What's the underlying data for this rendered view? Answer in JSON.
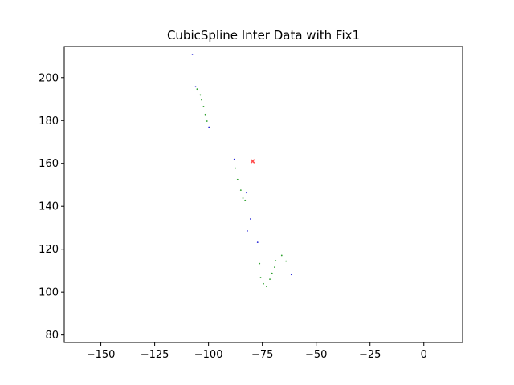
{
  "chart_data": {
    "type": "scatter",
    "title": "CubicSpline Inter Data with Fix1",
    "xlabel": "",
    "ylabel": "",
    "xlim": [
      -167,
      18
    ],
    "ylim": [
      76.5,
      214.5
    ],
    "grid": false,
    "xticks": [
      {
        "value": -150,
        "label": "−150"
      },
      {
        "value": -125,
        "label": "−125"
      },
      {
        "value": -100,
        "label": "−100"
      },
      {
        "value": -75,
        "label": "−75"
      },
      {
        "value": -50,
        "label": "−50"
      },
      {
        "value": -25,
        "label": "−25"
      },
      {
        "value": 0,
        "label": "0"
      }
    ],
    "yticks": [
      {
        "value": 80,
        "label": "80"
      },
      {
        "value": 100,
        "label": "100"
      },
      {
        "value": 120,
        "label": "120"
      },
      {
        "value": 140,
        "label": "140"
      },
      {
        "value": 160,
        "label": "160"
      },
      {
        "value": 180,
        "label": "180"
      },
      {
        "value": 200,
        "label": "200"
      }
    ],
    "series": [
      {
        "marker": "dot",
        "color": "#1f1fd6",
        "points": [
          {
            "x": -107.5,
            "y": 210.7
          },
          {
            "x": -106.0,
            "y": 195.7
          },
          {
            "x": -99.8,
            "y": 176.9
          },
          {
            "x": -88.0,
            "y": 161.9
          },
          {
            "x": -82.3,
            "y": 146.3
          },
          {
            "x": -80.5,
            "y": 134.1
          },
          {
            "x": -82.0,
            "y": 128.5
          },
          {
            "x": -77.2,
            "y": 123.2
          },
          {
            "x": -61.5,
            "y": 108.2
          }
        ]
      },
      {
        "marker": "dot",
        "color": "#2ca02c",
        "points": [
          {
            "x": -105.3,
            "y": 194.6
          },
          {
            "x": -103.8,
            "y": 191.9
          },
          {
            "x": -103.2,
            "y": 189.6
          },
          {
            "x": -102.3,
            "y": 186.5
          },
          {
            "x": -101.5,
            "y": 182.8
          },
          {
            "x": -100.7,
            "y": 179.7
          },
          {
            "x": -87.5,
            "y": 157.8
          },
          {
            "x": -86.5,
            "y": 152.5
          },
          {
            "x": -85.0,
            "y": 147.5
          },
          {
            "x": -84.0,
            "y": 143.8
          },
          {
            "x": -83.0,
            "y": 142.8
          },
          {
            "x": -76.3,
            "y": 113.3
          },
          {
            "x": -75.8,
            "y": 106.8
          },
          {
            "x": -74.5,
            "y": 103.9
          },
          {
            "x": -73.0,
            "y": 102.6
          },
          {
            "x": -71.5,
            "y": 106.0
          },
          {
            "x": -70.5,
            "y": 108.8
          },
          {
            "x": -69.3,
            "y": 111.6
          },
          {
            "x": -68.8,
            "y": 114.6
          },
          {
            "x": -66.0,
            "y": 117.1
          },
          {
            "x": -64.0,
            "y": 114.4
          }
        ]
      },
      {
        "marker": "x",
        "color": "#ff4d4d",
        "points": [
          {
            "x": -79.5,
            "y": 161.0
          }
        ]
      }
    ]
  }
}
